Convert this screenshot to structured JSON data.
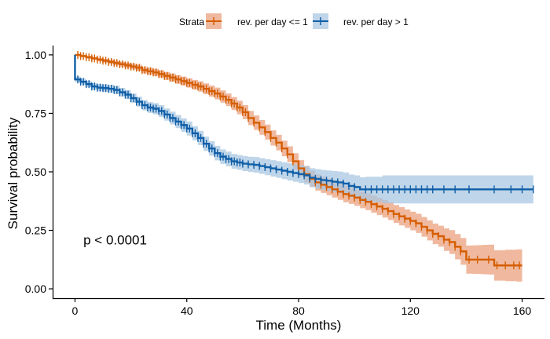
{
  "chart_data": {
    "type": "line",
    "subtype": "kaplan-meier-survival",
    "xlabel": "Time (Months)",
    "ylabel": "Survival probability",
    "xlim": [
      -8,
      168
    ],
    "ylim": [
      -0.04,
      1.04
    ],
    "xticks": [
      0,
      40,
      80,
      120,
      160
    ],
    "xtick_labels": [
      "0",
      "40",
      "80",
      "120",
      "160"
    ],
    "yticks": [
      0,
      0.25,
      0.5,
      0.75,
      1.0
    ],
    "ytick_labels": [
      "0.00",
      "0.25",
      "0.50",
      "0.75",
      "1.00"
    ],
    "grid": false,
    "legend": {
      "title": "Strata",
      "position": "top",
      "entries": [
        "rev. per day <= 1",
        "rev. per day > 1"
      ]
    },
    "annotations": [
      {
        "text": "p < 0.0001",
        "x": 3,
        "y": 0.19
      }
    ],
    "series": [
      {
        "name": "rev. per day <= 1",
        "color": "#D55E00",
        "band_color": "#EBA17F",
        "points": [
          [
            0,
            1.0
          ],
          [
            2,
            0.995
          ],
          [
            4,
            0.99
          ],
          [
            6,
            0.985
          ],
          [
            8,
            0.98
          ],
          [
            10,
            0.975
          ],
          [
            12,
            0.97
          ],
          [
            14,
            0.965
          ],
          [
            16,
            0.96
          ],
          [
            18,
            0.955
          ],
          [
            20,
            0.95
          ],
          [
            22,
            0.945
          ],
          [
            24,
            0.935
          ],
          [
            26,
            0.93
          ],
          [
            28,
            0.925
          ],
          [
            30,
            0.918
          ],
          [
            32,
            0.91
          ],
          [
            34,
            0.903
          ],
          [
            36,
            0.895
          ],
          [
            38,
            0.888
          ],
          [
            40,
            0.88
          ],
          [
            42,
            0.872
          ],
          [
            44,
            0.865
          ],
          [
            46,
            0.855
          ],
          [
            48,
            0.845
          ],
          [
            50,
            0.835
          ],
          [
            52,
            0.822
          ],
          [
            54,
            0.808
          ],
          [
            56,
            0.792
          ],
          [
            58,
            0.775
          ],
          [
            60,
            0.755
          ],
          [
            62,
            0.73
          ],
          [
            64,
            0.71
          ],
          [
            66,
            0.69
          ],
          [
            68,
            0.67
          ],
          [
            70,
            0.645
          ],
          [
            72,
            0.625
          ],
          [
            74,
            0.6
          ],
          [
            76,
            0.575
          ],
          [
            78,
            0.545
          ],
          [
            80,
            0.515
          ],
          [
            82,
            0.49
          ],
          [
            84,
            0.47
          ],
          [
            86,
            0.455
          ],
          [
            88,
            0.445
          ],
          [
            90,
            0.435
          ],
          [
            92,
            0.425
          ],
          [
            94,
            0.415
          ],
          [
            96,
            0.405
          ],
          [
            98,
            0.398
          ],
          [
            100,
            0.39
          ],
          [
            102,
            0.38
          ],
          [
            104,
            0.372
          ],
          [
            106,
            0.362
          ],
          [
            108,
            0.352
          ],
          [
            110,
            0.342
          ],
          [
            112,
            0.332
          ],
          [
            114,
            0.32
          ],
          [
            116,
            0.31
          ],
          [
            118,
            0.3
          ],
          [
            120,
            0.29
          ],
          [
            122,
            0.28
          ],
          [
            124,
            0.265
          ],
          [
            126,
            0.25
          ],
          [
            128,
            0.235
          ],
          [
            130,
            0.225
          ],
          [
            132,
            0.21
          ],
          [
            134,
            0.2
          ],
          [
            136,
            0.18
          ],
          [
            138,
            0.16
          ],
          [
            140,
            0.125
          ],
          [
            142,
            0.125
          ],
          [
            144,
            0.125
          ],
          [
            146,
            0.125
          ],
          [
            148,
            0.125
          ],
          [
            150,
            0.1
          ],
          [
            154,
            0.1
          ],
          [
            158,
            0.1
          ],
          [
            160,
            0.1
          ]
        ],
        "band_halfwidth": [
          [
            0,
            0.004
          ],
          [
            20,
            0.012
          ],
          [
            40,
            0.02
          ],
          [
            60,
            0.03
          ],
          [
            80,
            0.035
          ],
          [
            100,
            0.035
          ],
          [
            120,
            0.04
          ],
          [
            130,
            0.045
          ],
          [
            140,
            0.06
          ],
          [
            160,
            0.07
          ]
        ],
        "censor_times": [
          1,
          2,
          3,
          4,
          5,
          6,
          7,
          8,
          9,
          10,
          11,
          12,
          13,
          14,
          15,
          16,
          17,
          18,
          19,
          20,
          21,
          22,
          23,
          24,
          25,
          26,
          27,
          28,
          29,
          30,
          31,
          32,
          33,
          34,
          35,
          36,
          37,
          38,
          39,
          40,
          41,
          42,
          43,
          44,
          45,
          46,
          47,
          48,
          49,
          50,
          51,
          52,
          53,
          54,
          55,
          56,
          57,
          58,
          59,
          60,
          61,
          62,
          64,
          66,
          68,
          70,
          72,
          74,
          76,
          78,
          80,
          82,
          84,
          86,
          88,
          90,
          92,
          94,
          96,
          98,
          100,
          102,
          104,
          106,
          108,
          110,
          112,
          114,
          116,
          118,
          120,
          122,
          124,
          126,
          128,
          130,
          132,
          134,
          136,
          138,
          141,
          144,
          148,
          151,
          154,
          157,
          159
        ]
      },
      {
        "name": "rev. per day > 1",
        "color": "#0F5FA8",
        "band_color": "#A9C7E2",
        "points": [
          [
            0,
            1.0
          ],
          [
            0,
            0.895
          ],
          [
            2,
            0.885
          ],
          [
            4,
            0.875
          ],
          [
            6,
            0.865
          ],
          [
            8,
            0.86
          ],
          [
            10,
            0.858
          ],
          [
            12,
            0.855
          ],
          [
            14,
            0.85
          ],
          [
            16,
            0.84
          ],
          [
            18,
            0.83
          ],
          [
            20,
            0.815
          ],
          [
            22,
            0.8
          ],
          [
            24,
            0.785
          ],
          [
            26,
            0.775
          ],
          [
            28,
            0.77
          ],
          [
            30,
            0.76
          ],
          [
            32,
            0.745
          ],
          [
            34,
            0.73
          ],
          [
            36,
            0.715
          ],
          [
            38,
            0.7
          ],
          [
            40,
            0.685
          ],
          [
            42,
            0.665
          ],
          [
            44,
            0.645
          ],
          [
            46,
            0.62
          ],
          [
            48,
            0.6
          ],
          [
            50,
            0.58
          ],
          [
            52,
            0.565
          ],
          [
            54,
            0.555
          ],
          [
            56,
            0.545
          ],
          [
            58,
            0.54
          ],
          [
            60,
            0.535
          ],
          [
            62,
            0.532
          ],
          [
            64,
            0.53
          ],
          [
            66,
            0.525
          ],
          [
            68,
            0.52
          ],
          [
            70,
            0.515
          ],
          [
            72,
            0.51
          ],
          [
            74,
            0.505
          ],
          [
            76,
            0.5
          ],
          [
            78,
            0.495
          ],
          [
            80,
            0.49
          ],
          [
            82,
            0.485
          ],
          [
            84,
            0.475
          ],
          [
            86,
            0.47
          ],
          [
            88,
            0.465
          ],
          [
            90,
            0.462
          ],
          [
            92,
            0.458
          ],
          [
            94,
            0.455
          ],
          [
            96,
            0.45
          ],
          [
            98,
            0.44
          ],
          [
            100,
            0.435
          ],
          [
            102,
            0.425
          ],
          [
            104,
            0.425
          ],
          [
            110,
            0.425
          ],
          [
            120,
            0.425
          ],
          [
            130,
            0.425
          ],
          [
            140,
            0.425
          ],
          [
            150,
            0.425
          ],
          [
            164,
            0.425
          ]
        ],
        "band_halfwidth": [
          [
            0,
            0.012
          ],
          [
            20,
            0.02
          ],
          [
            40,
            0.03
          ],
          [
            60,
            0.032
          ],
          [
            80,
            0.038
          ],
          [
            100,
            0.05
          ],
          [
            110,
            0.06
          ],
          [
            164,
            0.06
          ]
        ],
        "censor_times": [
          1,
          2,
          3,
          4,
          5,
          6,
          7,
          8,
          9,
          10,
          11,
          12,
          13,
          14,
          15,
          16,
          17,
          18,
          19,
          20,
          21,
          22,
          23,
          24,
          25,
          26,
          27,
          28,
          29,
          30,
          31,
          32,
          33,
          34,
          35,
          36,
          37,
          38,
          39,
          40,
          41,
          42,
          43,
          44,
          45,
          46,
          47,
          48,
          49,
          50,
          51,
          52,
          53,
          54,
          55,
          56,
          57,
          58,
          59,
          60,
          62,
          64,
          66,
          68,
          70,
          72,
          74,
          76,
          78,
          80,
          82,
          84,
          86,
          88,
          90,
          92,
          94,
          96,
          98,
          100,
          104,
          106,
          108,
          110,
          112,
          114,
          116,
          118,
          120,
          122,
          124,
          126,
          128,
          132,
          136,
          141,
          150,
          156,
          160,
          164
        ]
      }
    ]
  }
}
